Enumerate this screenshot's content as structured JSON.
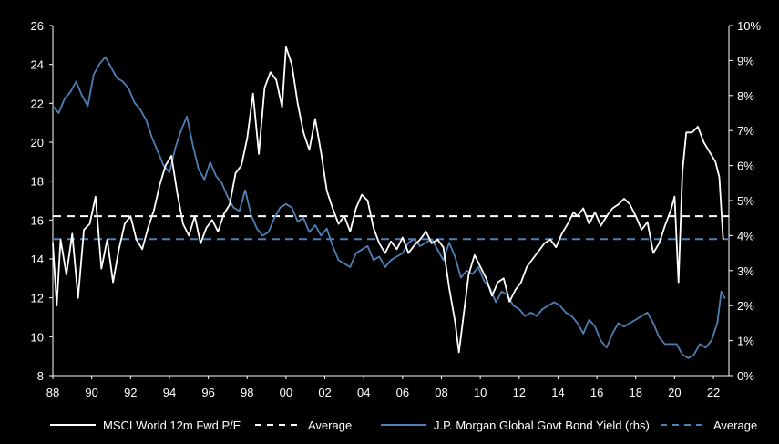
{
  "chart_data": {
    "type": "line",
    "title": "",
    "xlabel": "",
    "ylabel_left": "",
    "ylabel_right": "",
    "x_range": [
      1988,
      2022.7
    ],
    "y_left_range": [
      8,
      26
    ],
    "y_right_range": [
      0,
      10
    ],
    "x_ticks": [
      "88",
      "90",
      "92",
      "94",
      "96",
      "98",
      "00",
      "02",
      "04",
      "06",
      "08",
      "10",
      "12",
      "14",
      "16",
      "18",
      "20",
      "22"
    ],
    "y_left_ticks": [
      "8",
      "10",
      "12",
      "14",
      "16",
      "18",
      "20",
      "22",
      "24",
      "26"
    ],
    "y_right_ticks": [
      "0%",
      "1%",
      "2%",
      "3%",
      "4%",
      "5%",
      "6%",
      "7%",
      "8%",
      "9%",
      "10%"
    ],
    "colors": {
      "pe": "#ffffff",
      "yield": "#4e7fb5",
      "pe_average": "#ffffff",
      "yield_average": "#4e7fb5"
    },
    "series": [
      {
        "name": "MSCI World 12m Fwd P/E",
        "axis": "left",
        "x": [
          1988.0,
          1988.2,
          1988.4,
          1988.7,
          1989.0,
          1989.3,
          1989.6,
          1989.9,
          1990.2,
          1990.5,
          1990.8,
          1991.1,
          1991.4,
          1991.7,
          1992.0,
          1992.3,
          1992.6,
          1992.9,
          1993.2,
          1993.5,
          1993.8,
          1994.1,
          1994.4,
          1994.7,
          1995.0,
          1995.3,
          1995.6,
          1995.9,
          1996.2,
          1996.5,
          1996.8,
          1997.1,
          1997.4,
          1997.7,
          1998.0,
          1998.3,
          1998.6,
          1998.9,
          1999.2,
          1999.5,
          1999.8,
          2000.0,
          2000.3,
          2000.6,
          2000.9,
          2001.2,
          2001.5,
          2001.8,
          2002.1,
          2002.4,
          2002.7,
          2003.0,
          2003.3,
          2003.6,
          2003.9,
          2004.2,
          2004.5,
          2004.8,
          2005.1,
          2005.4,
          2005.7,
          2006.0,
          2006.3,
          2006.6,
          2006.9,
          2007.2,
          2007.5,
          2007.8,
          2008.1,
          2008.4,
          2008.7,
          2008.9,
          2009.1,
          2009.4,
          2009.7,
          2010.0,
          2010.3,
          2010.6,
          2010.9,
          2011.2,
          2011.5,
          2011.8,
          2012.1,
          2012.4,
          2012.7,
          2013.0,
          2013.3,
          2013.6,
          2013.9,
          2014.2,
          2014.5,
          2014.8,
          2015.0,
          2015.3,
          2015.6,
          2015.9,
          2016.2,
          2016.5,
          2016.8,
          2017.1,
          2017.4,
          2017.7,
          2018.0,
          2018.3,
          2018.6,
          2018.9,
          2019.2,
          2019.5,
          2019.8,
          2020.0,
          2020.2,
          2020.4,
          2020.6,
          2020.9,
          2021.2,
          2021.5,
          2021.8,
          2022.1,
          2022.3,
          2022.5
        ],
        "values": [
          14.8,
          11.6,
          15.0,
          13.2,
          15.3,
          12.0,
          15.5,
          15.8,
          17.2,
          13.5,
          15.0,
          12.8,
          14.5,
          15.8,
          16.2,
          15.0,
          14.5,
          15.6,
          16.5,
          17.8,
          18.8,
          19.3,
          17.4,
          15.8,
          15.2,
          16.2,
          14.8,
          15.6,
          16.0,
          15.4,
          16.3,
          16.8,
          18.4,
          18.8,
          20.2,
          22.5,
          19.4,
          22.8,
          23.6,
          23.2,
          21.8,
          24.9,
          24.0,
          22.0,
          20.5,
          19.6,
          21.2,
          19.5,
          17.5,
          16.6,
          15.8,
          16.2,
          15.4,
          16.6,
          17.3,
          17.0,
          15.6,
          14.8,
          14.3,
          14.9,
          14.5,
          15.1,
          14.3,
          14.7,
          15.0,
          15.4,
          14.8,
          15.0,
          14.6,
          12.5,
          10.8,
          9.2,
          10.8,
          13.2,
          14.2,
          13.6,
          13.0,
          12.1,
          12.8,
          13.0,
          11.8,
          12.4,
          12.8,
          13.6,
          14.0,
          14.4,
          14.8,
          15.0,
          14.6,
          15.3,
          15.8,
          16.4,
          16.2,
          16.6,
          15.8,
          16.4,
          15.7,
          16.2,
          16.6,
          16.8,
          17.1,
          16.8,
          16.2,
          15.5,
          15.9,
          14.3,
          14.8,
          15.7,
          16.5,
          17.2,
          12.8,
          18.5,
          20.5,
          20.5,
          20.8,
          20.0,
          19.5,
          19.0,
          18.2,
          15.0
        ]
      },
      {
        "name": "Average",
        "axis": "left",
        "value": 16.2
      },
      {
        "name": "J.P. Morgan Global Govt Bond Yield (rhs)",
        "axis": "right",
        "x": [
          1988.0,
          1988.3,
          1988.6,
          1988.9,
          1989.2,
          1989.5,
          1989.8,
          1990.1,
          1990.4,
          1990.7,
          1991.0,
          1991.3,
          1991.6,
          1991.9,
          1992.2,
          1992.5,
          1992.8,
          1993.1,
          1993.4,
          1993.7,
          1994.0,
          1994.3,
          1994.6,
          1994.9,
          1995.2,
          1995.5,
          1995.8,
          1996.1,
          1996.4,
          1996.7,
          1997.0,
          1997.3,
          1997.6,
          1997.9,
          1998.2,
          1998.5,
          1998.8,
          1999.1,
          1999.4,
          1999.7,
          2000.0,
          2000.3,
          2000.6,
          2000.9,
          2001.2,
          2001.5,
          2001.8,
          2002.1,
          2002.4,
          2002.7,
          2003.0,
          2003.3,
          2003.6,
          2003.9,
          2004.2,
          2004.5,
          2004.8,
          2005.1,
          2005.4,
          2005.7,
          2006.0,
          2006.3,
          2006.6,
          2006.9,
          2007.2,
          2007.5,
          2007.8,
          2008.1,
          2008.4,
          2008.7,
          2009.0,
          2009.3,
          2009.6,
          2009.9,
          2010.2,
          2010.5,
          2010.8,
          2011.1,
          2011.4,
          2011.7,
          2012.0,
          2012.3,
          2012.6,
          2012.9,
          2013.2,
          2013.5,
          2013.8,
          2014.1,
          2014.4,
          2014.7,
          2015.0,
          2015.3,
          2015.6,
          2015.9,
          2016.2,
          2016.5,
          2016.8,
          2017.1,
          2017.4,
          2017.7,
          2018.0,
          2018.3,
          2018.6,
          2018.9,
          2019.2,
          2019.5,
          2019.8,
          2020.1,
          2020.4,
          2020.7,
          2021.0,
          2021.3,
          2021.6,
          2021.9,
          2022.2,
          2022.4,
          2022.6
        ],
        "values": [
          7.7,
          7.5,
          7.9,
          8.1,
          8.4,
          8.0,
          7.7,
          8.6,
          8.9,
          9.1,
          8.8,
          8.5,
          8.4,
          8.2,
          7.8,
          7.6,
          7.3,
          6.8,
          6.4,
          6.0,
          5.8,
          6.5,
          7.0,
          7.4,
          6.6,
          5.9,
          5.6,
          6.1,
          5.7,
          5.5,
          5.1,
          4.8,
          4.7,
          5.3,
          4.6,
          4.2,
          4.0,
          4.1,
          4.5,
          4.8,
          4.9,
          4.8,
          4.4,
          4.5,
          4.1,
          4.3,
          4.0,
          4.2,
          3.7,
          3.3,
          3.2,
          3.1,
          3.5,
          3.6,
          3.7,
          3.3,
          3.4,
          3.1,
          3.3,
          3.4,
          3.5,
          3.8,
          3.9,
          3.7,
          3.8,
          3.9,
          3.6,
          3.3,
          3.8,
          3.4,
          2.8,
          3.0,
          2.9,
          3.1,
          2.7,
          2.5,
          2.1,
          2.4,
          2.3,
          2.0,
          1.9,
          1.7,
          1.8,
          1.7,
          1.9,
          2.0,
          2.1,
          2.0,
          1.8,
          1.7,
          1.5,
          1.2,
          1.6,
          1.4,
          1.0,
          0.8,
          1.2,
          1.5,
          1.4,
          1.5,
          1.6,
          1.7,
          1.8,
          1.5,
          1.1,
          0.9,
          0.9,
          0.9,
          0.6,
          0.5,
          0.6,
          0.9,
          0.8,
          1.0,
          1.5,
          2.4,
          2.2
        ]
      },
      {
        "name": "Average",
        "axis": "right",
        "value": 3.9
      }
    ],
    "legend": {
      "position": "bottom",
      "items": [
        {
          "label": "MSCI World 12m Fwd P/E",
          "style": "solid",
          "color": "#ffffff"
        },
        {
          "label": "Average",
          "style": "dashed",
          "color": "#ffffff"
        },
        {
          "label": "J.P. Morgan Global Govt Bond Yield (rhs)",
          "style": "solid",
          "color": "#4e7fb5"
        },
        {
          "label": "Average",
          "style": "dashed",
          "color": "#4e7fb5"
        }
      ]
    }
  }
}
